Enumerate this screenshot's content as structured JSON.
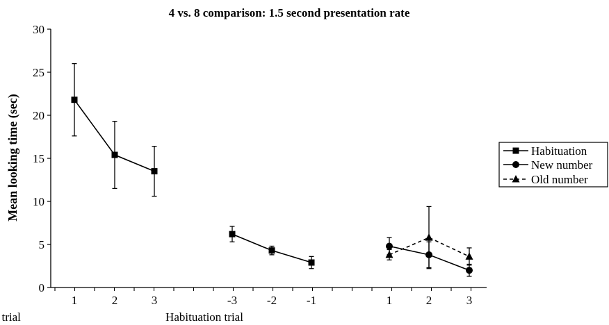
{
  "chart_data": {
    "type": "line",
    "title": "4 vs. 8 comparison: 1.5 second presentation rate",
    "ylabel": "Mean looking time (sec)",
    "ylim": [
      0,
      30
    ],
    "yticks": [
      0,
      5,
      10,
      15,
      20,
      25,
      30
    ],
    "grid": false,
    "legend_position": "right",
    "groups": [
      {
        "label": "Habituation trial",
        "tick_labels": [
          "1",
          "2",
          "3"
        ]
      },
      {
        "label": "",
        "tick_labels": [
          "-3",
          "-2",
          "-1"
        ]
      },
      {
        "label": "Test trial",
        "tick_labels": [
          "1",
          "2",
          "3"
        ]
      }
    ],
    "series": [
      {
        "name": "Habituation",
        "marker": "square",
        "dash": "solid",
        "segments": [
          {
            "group": 0,
            "values": [
              21.8,
              15.4,
              13.5
            ],
            "error": [
              4.2,
              3.9,
              2.9
            ]
          },
          {
            "group": 1,
            "values": [
              6.2,
              4.3,
              2.9
            ],
            "error": [
              0.9,
              0.5,
              0.7
            ]
          }
        ]
      },
      {
        "name": "New number",
        "marker": "circle",
        "dash": "solid",
        "segments": [
          {
            "group": 2,
            "values": [
              4.8,
              3.8,
              2.0
            ],
            "error": [
              1.0,
              1.5,
              0.7
            ]
          }
        ]
      },
      {
        "name": "Old number",
        "marker": "triangle",
        "dash": "dashed",
        "segments": [
          {
            "group": 2,
            "values": [
              3.8,
              5.8,
              3.6
            ],
            "error": [
              0.6,
              3.6,
              1.0
            ]
          }
        ]
      }
    ]
  }
}
